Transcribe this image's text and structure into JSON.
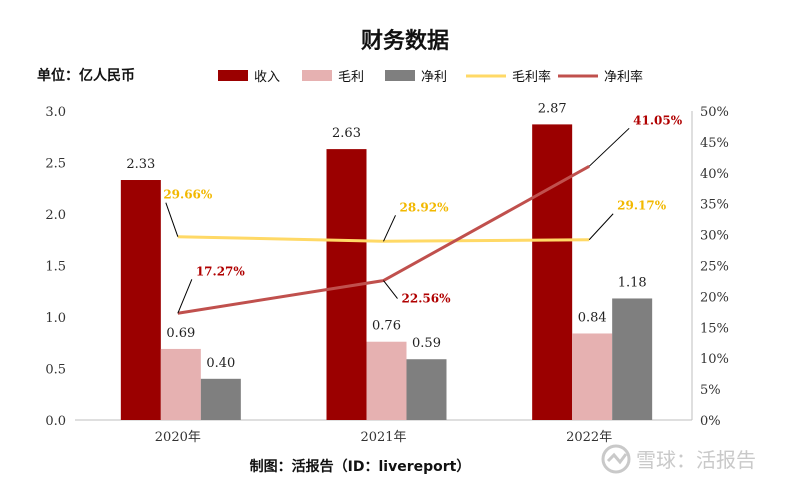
{
  "chart_data": {
    "type": "bar",
    "title": "财务数据",
    "unit_label": "单位：亿人民币",
    "categories": [
      "2020年",
      "2021年",
      "2022年"
    ],
    "series": [
      {
        "name": "收入",
        "kind": "bar",
        "axis": "left",
        "color": "#9b0000",
        "values": [
          2.33,
          2.63,
          2.87
        ],
        "labels": [
          "2.33",
          "2.63",
          "2.87"
        ]
      },
      {
        "name": "毛利",
        "kind": "bar",
        "axis": "left",
        "color": "#e6b1b1",
        "values": [
          0.69,
          0.76,
          0.84
        ],
        "labels": [
          "0.69",
          "0.76",
          "0.84"
        ]
      },
      {
        "name": "净利",
        "kind": "bar",
        "axis": "left",
        "color": "#7f7f7f",
        "values": [
          0.4,
          0.59,
          1.18
        ],
        "labels": [
          "0.40",
          "0.59",
          "1.18"
        ]
      },
      {
        "name": "毛利率",
        "kind": "line",
        "axis": "right",
        "color": "#ffd966",
        "label_color": "#f2b800",
        "values": [
          29.66,
          28.92,
          29.17
        ],
        "labels": [
          "29.66%",
          "28.92%",
          "29.17%"
        ]
      },
      {
        "name": "净利率",
        "kind": "line",
        "axis": "right",
        "color": "#c0504d",
        "label_color": "#b00000",
        "values": [
          17.27,
          22.56,
          41.05
        ],
        "labels": [
          "17.27%",
          "22.56%",
          "41.05%"
        ]
      }
    ],
    "ylim": [
      0,
      3.0
    ],
    "y_ticks": [
      "0.0",
      "0.5",
      "1.0",
      "1.5",
      "2.0",
      "2.5",
      "3.0"
    ],
    "y2lim": [
      0,
      50
    ],
    "y2_ticks": [
      "0%",
      "5%",
      "10%",
      "15%",
      "20%",
      "25%",
      "30%",
      "35%",
      "40%",
      "45%",
      "50%"
    ],
    "grid": false,
    "legend_position": "top"
  },
  "footer": {
    "source": "制图：活报告（ID：livereport）",
    "watermark": "雪球：活报告"
  }
}
